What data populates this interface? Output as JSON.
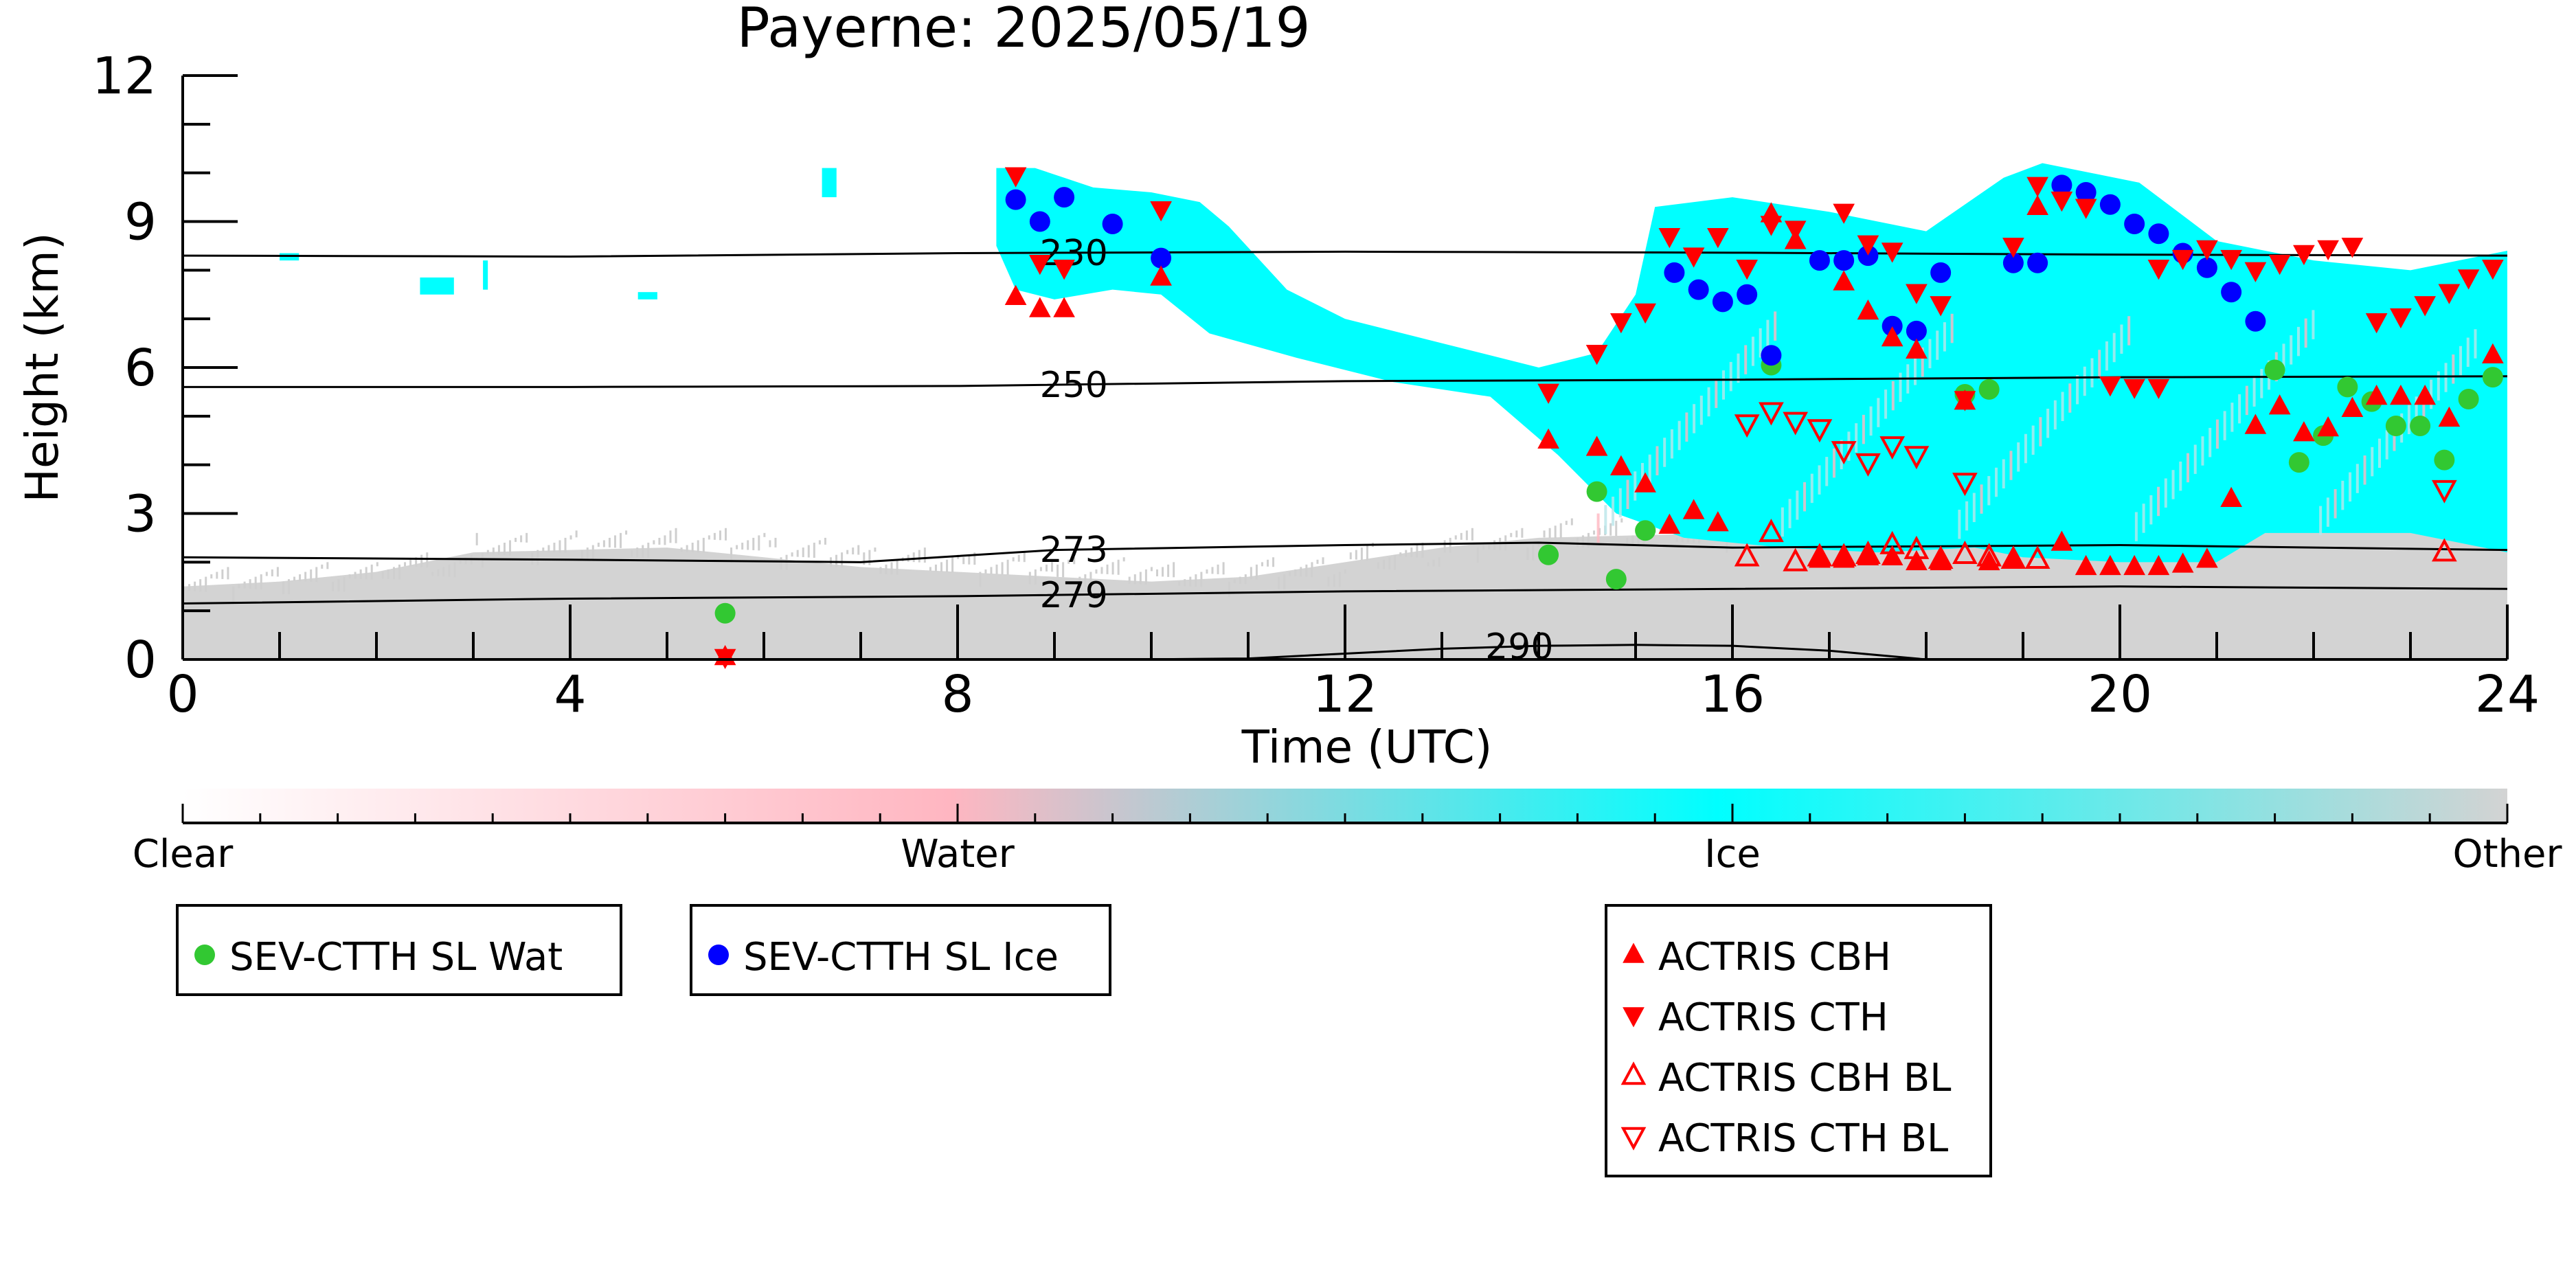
{
  "chart_data": {
    "type": "scatter",
    "title": "Payerne: 2025/05/19",
    "xlabel": "Time (UTC)",
    "ylabel": "Height (km)",
    "xlim": [
      0,
      24
    ],
    "ylim": [
      0,
      12
    ],
    "x_ticks": [
      "0",
      "4",
      "8",
      "12",
      "16",
      "20",
      "24"
    ],
    "y_ticks": [
      "0",
      "3",
      "6",
      "9",
      "12"
    ],
    "colorbar": {
      "labels": [
        "Clear",
        "Water",
        "Ice",
        "Other"
      ],
      "colors": [
        "#ffffff",
        "#ffb6c1",
        "#00ffff",
        "#d3d3d3"
      ]
    },
    "isotherms": [
      {
        "label": "230",
        "x": [
          0,
          4,
          8,
          12,
          16,
          20,
          24
        ],
        "y": [
          8.3,
          8.28,
          8.35,
          8.38,
          8.36,
          8.32,
          8.3
        ]
      },
      {
        "label": "250",
        "x": [
          0,
          4,
          8,
          12,
          16,
          20,
          24
        ],
        "y": [
          5.6,
          5.6,
          5.62,
          5.72,
          5.75,
          5.8,
          5.82
        ]
      },
      {
        "label": "273",
        "x": [
          0,
          4,
          7,
          9,
          12,
          14,
          16,
          20,
          24
        ],
        "y": [
          2.1,
          2.05,
          2.0,
          2.25,
          2.35,
          2.4,
          2.3,
          2.35,
          2.25
        ]
      },
      {
        "label": "279",
        "x": [
          0,
          4,
          8,
          12,
          16,
          20,
          24
        ],
        "y": [
          1.15,
          1.25,
          1.3,
          1.4,
          1.45,
          1.5,
          1.45
        ]
      },
      {
        "label": "290",
        "x": [
          9.8,
          11,
          12,
          13,
          14,
          15,
          16,
          17,
          18
        ],
        "y": [
          0.0,
          0.02,
          0.12,
          0.22,
          0.28,
          0.3,
          0.28,
          0.18,
          0.0
        ]
      }
    ],
    "series": [
      {
        "name": "SEV-CTTH SL Wat",
        "marker": "circle",
        "color": "#32c832",
        "points": [
          [
            5.6,
            0.95
          ],
          [
            14.1,
            2.15
          ],
          [
            14.6,
            3.45
          ],
          [
            14.8,
            1.65
          ],
          [
            15.1,
            2.65
          ],
          [
            16.4,
            6.05
          ],
          [
            18.4,
            5.45
          ],
          [
            18.65,
            5.55
          ],
          [
            21.6,
            5.95
          ],
          [
            21.85,
            4.05
          ],
          [
            22.1,
            4.6
          ],
          [
            22.35,
            5.6
          ],
          [
            22.6,
            5.3
          ],
          [
            22.85,
            4.8
          ],
          [
            23.1,
            4.8
          ],
          [
            23.35,
            4.1
          ],
          [
            23.6,
            5.35
          ],
          [
            23.85,
            5.8
          ]
        ]
      },
      {
        "name": "SEV-CTTH SL Ice",
        "marker": "circle",
        "color": "#0000ff",
        "points": [
          [
            8.6,
            9.45
          ],
          [
            8.85,
            9.0
          ],
          [
            9.1,
            9.5
          ],
          [
            9.6,
            8.95
          ],
          [
            10.1,
            8.25
          ],
          [
            15.4,
            7.95
          ],
          [
            15.65,
            7.6
          ],
          [
            15.9,
            7.35
          ],
          [
            16.15,
            7.5
          ],
          [
            16.4,
            6.25
          ],
          [
            16.9,
            8.2
          ],
          [
            17.15,
            8.2
          ],
          [
            17.4,
            8.3
          ],
          [
            17.65,
            6.85
          ],
          [
            17.9,
            6.75
          ],
          [
            18.15,
            7.95
          ],
          [
            18.9,
            8.15
          ],
          [
            19.15,
            8.15
          ],
          [
            19.4,
            9.75
          ],
          [
            19.65,
            9.6
          ],
          [
            19.9,
            9.35
          ],
          [
            20.15,
            8.95
          ],
          [
            20.4,
            8.75
          ],
          [
            20.65,
            8.35
          ],
          [
            20.9,
            8.05
          ],
          [
            21.15,
            7.55
          ],
          [
            21.4,
            6.95
          ]
        ]
      },
      {
        "name": "ACTRIS CBH",
        "marker": "triangle-up",
        "color": "#ff0000",
        "points": [
          [
            5.6,
            0.05
          ],
          [
            8.6,
            7.45
          ],
          [
            8.85,
            7.2
          ],
          [
            9.1,
            7.2
          ],
          [
            10.1,
            7.85
          ],
          [
            14.1,
            4.5
          ],
          [
            14.6,
            4.35
          ],
          [
            14.85,
            3.95
          ],
          [
            15.1,
            3.6
          ],
          [
            15.35,
            2.75
          ],
          [
            15.6,
            3.05
          ],
          [
            15.85,
            2.8
          ],
          [
            16.4,
            9.15
          ],
          [
            16.65,
            8.6
          ],
          [
            16.9,
            2.05
          ],
          [
            17.15,
            7.75
          ],
          [
            17.4,
            7.15
          ],
          [
            17.65,
            6.6
          ],
          [
            17.9,
            6.35
          ],
          [
            17.15,
            2.05
          ],
          [
            17.4,
            2.1
          ],
          [
            17.65,
            2.1
          ],
          [
            17.9,
            2.0
          ],
          [
            18.15,
            2.0
          ],
          [
            18.4,
            5.3
          ],
          [
            18.65,
            2.0
          ],
          [
            18.9,
            2.05
          ],
          [
            19.15,
            9.3
          ],
          [
            19.4,
            2.4
          ],
          [
            19.65,
            1.9
          ],
          [
            19.9,
            1.9
          ],
          [
            20.15,
            1.9
          ],
          [
            20.4,
            1.9
          ],
          [
            20.65,
            1.95
          ],
          [
            20.9,
            2.05
          ],
          [
            21.15,
            3.3
          ],
          [
            21.4,
            4.8
          ],
          [
            21.65,
            5.2
          ],
          [
            21.9,
            4.65
          ],
          [
            22.15,
            4.75
          ],
          [
            22.4,
            5.15
          ],
          [
            22.65,
            5.4
          ],
          [
            22.9,
            5.4
          ],
          [
            23.15,
            5.4
          ],
          [
            23.4,
            4.95
          ],
          [
            23.85,
            6.25
          ]
        ]
      },
      {
        "name": "ACTRIS CTH",
        "marker": "triangle-down",
        "color": "#ff0000",
        "points": [
          [
            5.6,
            0.05
          ],
          [
            8.6,
            9.95
          ],
          [
            8.85,
            8.15
          ],
          [
            9.1,
            8.05
          ],
          [
            10.1,
            9.25
          ],
          [
            14.1,
            5.5
          ],
          [
            14.6,
            6.3
          ],
          [
            14.85,
            6.95
          ],
          [
            15.1,
            7.15
          ],
          [
            15.35,
            8.7
          ],
          [
            15.6,
            8.3
          ],
          [
            15.85,
            8.7
          ],
          [
            16.15,
            8.05
          ],
          [
            16.4,
            8.95
          ],
          [
            16.65,
            8.85
          ],
          [
            17.15,
            9.2
          ],
          [
            17.4,
            8.55
          ],
          [
            17.65,
            8.4
          ],
          [
            17.9,
            7.55
          ],
          [
            18.15,
            7.3
          ],
          [
            18.4,
            5.35
          ],
          [
            18.9,
            8.5
          ],
          [
            19.15,
            9.75
          ],
          [
            19.4,
            9.45
          ],
          [
            19.65,
            9.3
          ],
          [
            20.15,
            5.6
          ],
          [
            20.4,
            8.05
          ],
          [
            20.65,
            8.25
          ],
          [
            20.9,
            8.45
          ],
          [
            21.15,
            8.25
          ],
          [
            21.4,
            8.0
          ],
          [
            21.65,
            8.15
          ],
          [
            21.9,
            8.35
          ],
          [
            22.15,
            8.45
          ],
          [
            22.4,
            8.5
          ],
          [
            22.65,
            6.95
          ],
          [
            22.9,
            7.05
          ],
          [
            23.15,
            7.3
          ],
          [
            23.4,
            7.55
          ],
          [
            23.6,
            7.85
          ],
          [
            23.85,
            8.05
          ],
          [
            19.9,
            5.65
          ],
          [
            20.4,
            5.6
          ]
        ]
      },
      {
        "name": "ACTRIS CBH BL",
        "marker": "triangle-up-open",
        "color": "#ff0000",
        "points": [
          [
            16.15,
            2.1
          ],
          [
            16.4,
            2.6
          ],
          [
            16.65,
            2.0
          ],
          [
            16.9,
            2.1
          ],
          [
            17.15,
            2.1
          ],
          [
            17.4,
            2.15
          ],
          [
            17.65,
            2.35
          ],
          [
            17.9,
            2.25
          ],
          [
            18.15,
            2.05
          ],
          [
            18.4,
            2.15
          ],
          [
            18.65,
            2.1
          ],
          [
            18.9,
            2.05
          ],
          [
            19.15,
            2.05
          ],
          [
            23.35,
            2.2
          ]
        ]
      },
      {
        "name": "ACTRIS CTH BL",
        "marker": "triangle-down-open",
        "color": "#ff0000",
        "points": [
          [
            16.15,
            4.85
          ],
          [
            16.4,
            5.1
          ],
          [
            16.65,
            4.9
          ],
          [
            16.9,
            4.75
          ],
          [
            17.15,
            4.3
          ],
          [
            17.4,
            4.05
          ],
          [
            17.65,
            4.4
          ],
          [
            17.9,
            4.2
          ],
          [
            18.4,
            3.65
          ],
          [
            23.35,
            3.5
          ]
        ]
      }
    ]
  }
}
